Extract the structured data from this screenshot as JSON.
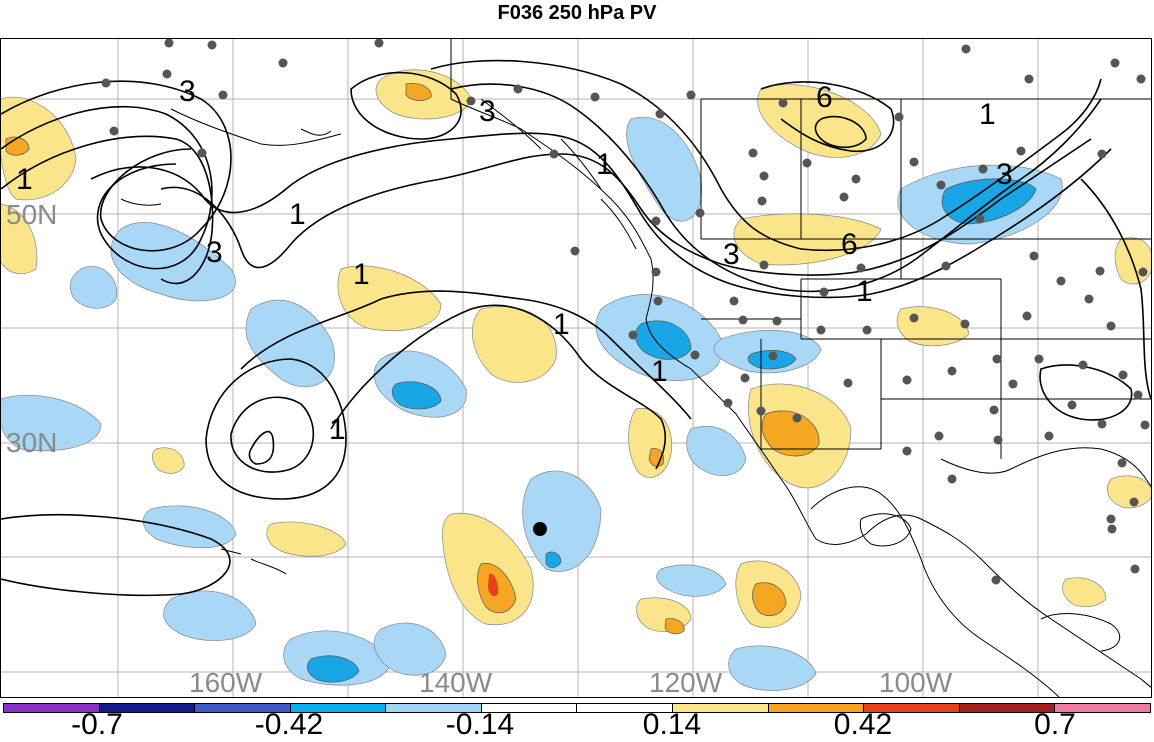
{
  "title": "F036 250 hPa PV",
  "map": {
    "lat_labels": [
      "50N",
      "30N"
    ],
    "lon_labels": [
      "160W",
      "140W",
      "120W",
      "100W"
    ],
    "contour_labels": [
      "3",
      "3",
      "1",
      "1",
      "3",
      "1",
      "1",
      "1",
      "1",
      "3",
      "6",
      "1",
      "6",
      "3",
      "1",
      "1"
    ],
    "colors": {
      "land_outline": "#000000",
      "grid": "#b4b4b4",
      "station_dot": "#555555",
      "light_yellow": "#fbe58b",
      "orange": "#f5a623",
      "dark_orange": "#e6811f",
      "red": "#e8411e",
      "light_blue": "#a8d8f5",
      "mid_blue": "#3ab4ef",
      "deep_blue": "#19a6e6"
    }
  },
  "colorbar": {
    "colors": [
      "#8b2fc9",
      "#141a8c",
      "#3d5ac7",
      "#0ab1ee",
      "#9dd6f3",
      "#ffffff",
      "#ffffff",
      "#fbe58b",
      "#f6a31e",
      "#e8411e",
      "#a51f1f",
      "#f07aa6"
    ],
    "labels": [
      "-0.7",
      "-0.42",
      "-0.14",
      "0.14",
      "0.42",
      "0.7"
    ]
  }
}
